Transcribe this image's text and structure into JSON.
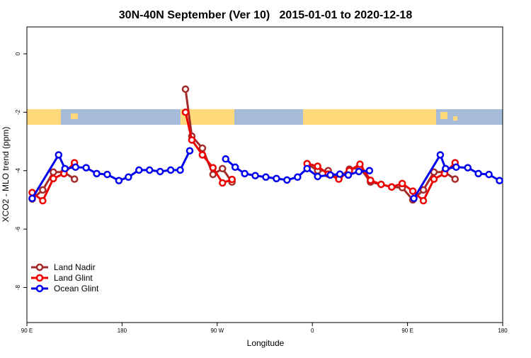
{
  "chart_data": {
    "type": "line",
    "title": "30N-40N September (Ver 10)   2015-01-01 to 2020-12-18",
    "xlabel": "Longitude",
    "ylabel": "XCO2 - MLO trend (ppm)",
    "xlim": [
      90,
      540
    ],
    "ylim": [
      -9.2,
      0.92
    ],
    "xticks": [
      {
        "value": 90,
        "label": "90 E"
      },
      {
        "value": 180,
        "label": "180"
      },
      {
        "value": 270,
        "label": "90 W"
      },
      {
        "value": 360,
        "label": "0"
      },
      {
        "value": 450,
        "label": "90 E"
      },
      {
        "value": 540,
        "label": "180"
      }
    ],
    "yticks": [
      0,
      -2,
      -4,
      -6,
      -8
    ],
    "legend": "bottom-left",
    "series": [
      {
        "name": "Land Nadir",
        "color": "#a52a2a",
        "x": [
          95,
          105,
          115,
          125,
          135,
          null,
          240,
          246,
          256,
          266,
          275,
          284,
          null,
          355,
          365,
          375,
          385,
          395,
          405,
          415,
          425,
          435,
          445,
          455,
          465,
          475,
          485,
          495
        ],
        "values": [
          -4.97,
          -4.66,
          -4.05,
          -4.05,
          -4.29,
          null,
          -1.21,
          -2.82,
          -3.23,
          -4.13,
          -3.93,
          -4.39,
          null,
          -3.76,
          -4.0,
          -4.0,
          -4.25,
          -3.95,
          -3.9,
          -4.39,
          -4.47,
          -4.56,
          -4.58,
          -5.0,
          -4.66,
          -4.05,
          -4.05,
          -4.29
        ]
      },
      {
        "name": "Land Glint",
        "color": "#ee0000",
        "x": [
          95,
          105,
          115,
          125,
          135,
          null,
          240,
          246,
          256,
          266,
          275,
          284,
          null,
          355,
          365,
          375,
          385,
          395,
          405,
          415,
          425,
          435,
          445,
          455,
          465,
          475,
          485,
          495
        ],
        "values": [
          -4.75,
          -5.03,
          -4.27,
          -4.1,
          -3.73,
          null,
          -2.0,
          -2.95,
          -3.46,
          -3.9,
          -4.42,
          -4.3,
          null,
          -3.76,
          -3.85,
          -4.12,
          -4.29,
          -4.0,
          -3.78,
          -4.33,
          -4.47,
          -4.56,
          -4.44,
          -4.7,
          -5.03,
          -4.29,
          -4.1,
          -3.73
        ]
      },
      {
        "name": "Ocean Glint",
        "color": "#0000ee",
        "x": [
          95,
          120,
          126,
          136,
          146,
          156,
          166,
          177,
          186,
          196,
          206,
          216,
          226,
          235,
          244,
          null,
          278,
          287,
          296,
          306,
          316,
          326,
          336,
          346,
          355,
          365,
          377,
          386,
          394,
          404,
          414,
          null,
          456,
          481,
          486,
          496,
          507,
          517,
          527,
          537
        ],
        "values": [
          -4.95,
          -3.46,
          -3.93,
          -3.88,
          -3.9,
          -4.1,
          -4.13,
          -4.34,
          -4.22,
          -3.98,
          -3.98,
          -4.03,
          -3.98,
          -3.98,
          -3.32,
          null,
          -3.6,
          -3.88,
          -4.1,
          -4.17,
          -4.22,
          -4.27,
          -4.32,
          -4.22,
          -3.93,
          -4.2,
          -4.15,
          -4.12,
          -4.15,
          -4.03,
          -4.0,
          null,
          -4.95,
          -3.46,
          -3.93,
          -3.88,
          -3.9,
          -4.1,
          -4.13,
          -4.34
        ]
      }
    ]
  }
}
